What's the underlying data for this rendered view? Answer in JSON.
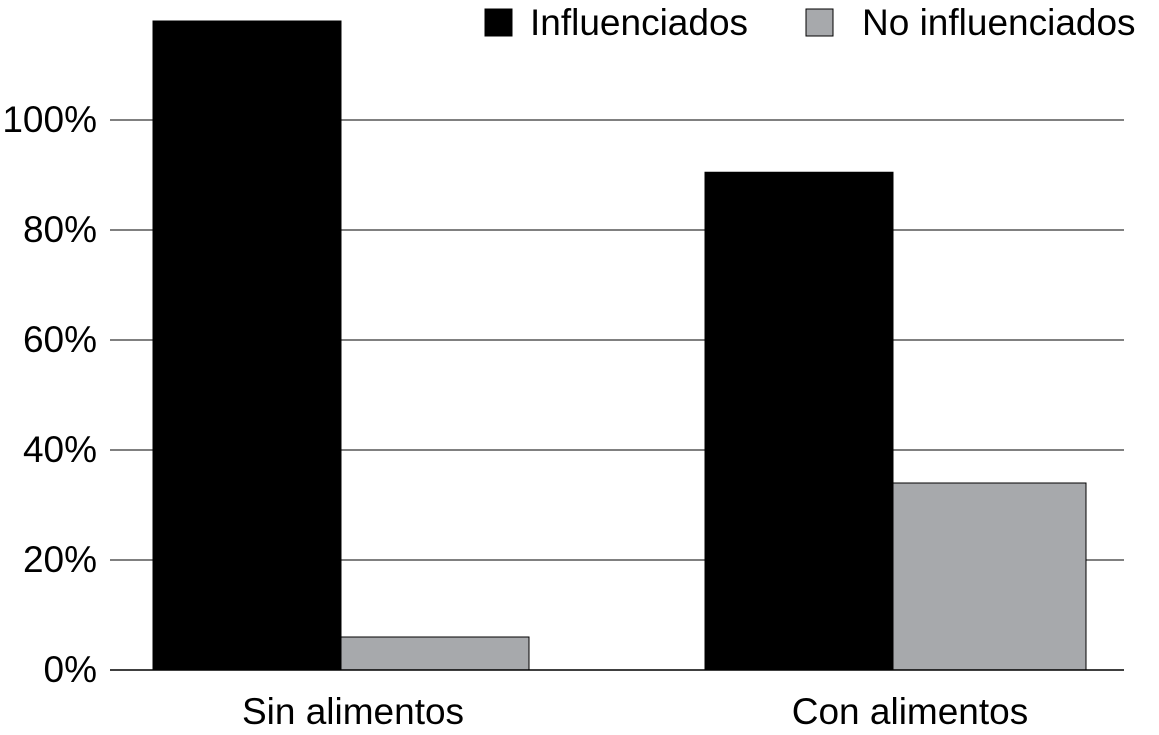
{
  "chart_data": {
    "type": "bar",
    "title": "",
    "xlabel": "",
    "ylabel": "",
    "categories": [
      "Sin alimentos",
      "Con alimentos"
    ],
    "series": [
      {
        "name": "Influenciados",
        "values": [
          118,
          90.5
        ],
        "color": "#000000"
      },
      {
        "name": "No influenciados",
        "values": [
          6,
          34
        ],
        "color": "#a7a9ac"
      }
    ],
    "ylim": [
      0,
      118
    ],
    "yticks": [
      0,
      20,
      40,
      60,
      80,
      100
    ],
    "ytick_labels": [
      "0%",
      "20%",
      "40%",
      "60%",
      "80%",
      "100%"
    ],
    "grid": true,
    "legend_position": "top-right"
  }
}
